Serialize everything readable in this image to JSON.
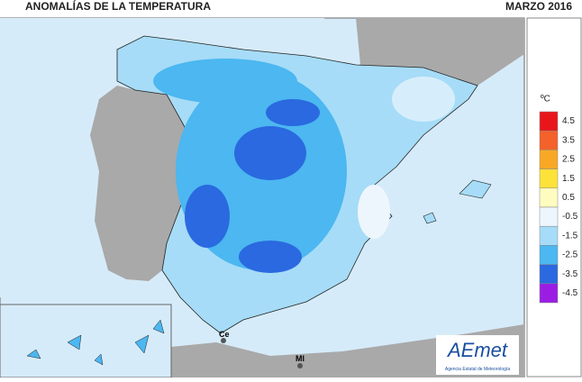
{
  "header": {
    "title": "ANOMALÍAS DE LA TEMPERATURA",
    "date": "MARZO 2016"
  },
  "legend": {
    "unit": "ºC",
    "items": [
      {
        "label": "4.5",
        "color": "#e8161b"
      },
      {
        "label": "3.5",
        "color": "#f4612a"
      },
      {
        "label": "2.5",
        "color": "#f9a825"
      },
      {
        "label": "1.5",
        "color": "#fde23a"
      },
      {
        "label": "0.5",
        "color": "#fefcbf"
      },
      {
        "label": "-0.5",
        "color": "#eef6fd"
      },
      {
        "label": "-1.5",
        "color": "#a6dcf7"
      },
      {
        "label": "-2.5",
        "color": "#4cb7f0"
      },
      {
        "label": "-3.5",
        "color": "#2a69e0"
      },
      {
        "label": "-4.5",
        "color": "#9b1de4"
      }
    ]
  },
  "map": {
    "labels": [
      "Ce",
      "Ml"
    ]
  },
  "logo": {
    "name": "AEmet",
    "subtitle": "Agencia Estatal de Meteorología"
  }
}
